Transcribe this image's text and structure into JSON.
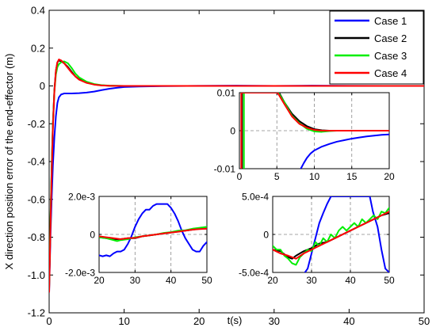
{
  "chart_data": [
    {
      "id": "main",
      "type": "line",
      "ylabel": "X direction position error of the end-effector (m)",
      "xlabel": "t(s)",
      "xlim": [
        0,
        50
      ],
      "ylim": [
        -1.2,
        0.4
      ],
      "xticks": [
        0,
        10,
        20,
        30,
        40,
        50
      ],
      "yticks": [
        -1.2,
        -1.0,
        -0.8,
        -0.6,
        -0.4,
        -0.2,
        0,
        0.2,
        0.4
      ],
      "ytick_labels": [
        "-1.2",
        "-1.0",
        "-0.8",
        "-0.6",
        "-0.4",
        "-0.2",
        "0",
        "0.2",
        "0.4"
      ],
      "legend_position": "top-right",
      "series": [
        {
          "name": "Case 1",
          "color": "#0000ff",
          "x": [
            0,
            0.1,
            0.2,
            0.35,
            0.5,
            0.7,
            0.9,
            1.1,
            1.3,
            1.6,
            2,
            3,
            4,
            5,
            6,
            7,
            8,
            9,
            10,
            12,
            15,
            20,
            25,
            30,
            35,
            40,
            45,
            50
          ],
          "y": [
            -1.09,
            -0.92,
            -0.76,
            -0.58,
            -0.42,
            -0.27,
            -0.16,
            -0.09,
            -0.06,
            -0.045,
            -0.04,
            -0.04,
            -0.038,
            -0.035,
            -0.03,
            -0.022,
            -0.015,
            -0.01,
            -0.006,
            -0.003,
            -0.001,
            0.0005,
            0.0015,
            0,
            0.0015,
            0.0005,
            0.0002,
            0
          ]
        },
        {
          "name": "Case 2",
          "color": "#000000",
          "x": [
            0,
            0.1,
            0.2,
            0.35,
            0.5,
            0.7,
            0.9,
            1.1,
            1.3,
            1.6,
            2,
            2.5,
            3,
            3.5,
            4,
            5,
            6,
            7,
            8,
            9,
            10,
            12,
            15,
            20,
            30,
            40,
            50
          ],
          "y": [
            -1.07,
            -0.88,
            -0.68,
            -0.42,
            -0.2,
            -0.02,
            0.08,
            0.125,
            0.135,
            0.13,
            0.12,
            0.1,
            0.075,
            0.05,
            0.035,
            0.018,
            0.008,
            0.003,
            0.001,
            0.0003,
            0,
            0,
            0,
            0,
            0,
            0,
            0
          ]
        },
        {
          "name": "Case 3",
          "color": "#00ee00",
          "x": [
            0,
            0.1,
            0.2,
            0.35,
            0.5,
            0.7,
            0.9,
            1.1,
            1.3,
            1.6,
            2,
            2.5,
            3,
            3.5,
            4,
            5,
            6,
            7,
            8,
            9,
            10,
            12,
            15,
            20,
            30,
            40,
            50
          ],
          "y": [
            -1.06,
            -0.86,
            -0.66,
            -0.41,
            -0.2,
            -0.03,
            0.06,
            0.1,
            0.115,
            0.125,
            0.13,
            0.12,
            0.095,
            0.065,
            0.045,
            0.022,
            0.01,
            0.004,
            0.0015,
            0.0005,
            0.0001,
            0,
            0,
            0,
            0,
            0,
            0
          ]
        },
        {
          "name": "Case 4",
          "color": "#ff0000",
          "x": [
            0,
            0.1,
            0.2,
            0.35,
            0.5,
            0.7,
            0.9,
            1.1,
            1.3,
            1.6,
            2,
            2.5,
            3,
            3.5,
            4,
            5,
            6,
            7,
            8,
            9,
            10,
            12,
            15,
            20,
            30,
            40,
            50
          ],
          "y": [
            -1.09,
            -0.9,
            -0.7,
            -0.44,
            -0.22,
            -0.03,
            0.08,
            0.125,
            0.14,
            0.135,
            0.12,
            0.095,
            0.07,
            0.05,
            0.033,
            0.016,
            0.007,
            0.0025,
            0.0008,
            0.0002,
            0,
            0,
            0,
            0,
            0,
            0,
            0
          ]
        }
      ]
    },
    {
      "id": "inset_a",
      "type": "line",
      "xlim": [
        0,
        20
      ],
      "ylim": [
        -0.01,
        0.01
      ],
      "xticks": [
        0,
        5,
        10,
        15,
        20
      ],
      "yticks": [
        -0.01,
        0,
        0.01
      ],
      "ytick_labels": [
        "-0.01",
        "0",
        "0.01"
      ],
      "series": [
        {
          "name": "Case 1",
          "color": "#0000ff",
          "x": [
            8.2,
            8.6,
            9,
            9.5,
            10,
            11,
            12,
            13,
            14,
            15,
            16,
            17,
            18,
            19,
            20
          ],
          "y": [
            -0.01,
            -0.0085,
            -0.0072,
            -0.006,
            -0.0052,
            -0.0042,
            -0.0035,
            -0.0029,
            -0.0025,
            -0.0021,
            -0.0018,
            -0.0015,
            -0.0013,
            -0.0011,
            -0.001
          ]
        },
        {
          "name": "Case 2",
          "color": "#000000",
          "x": [
            0.35,
            0.35,
            5.3,
            6,
            7,
            8,
            9,
            10,
            11,
            12,
            13,
            14,
            16,
            20
          ],
          "y": [
            -0.01,
            0.01,
            0.01,
            0.0075,
            0.0045,
            0.0025,
            0.0012,
            0.0004,
            0.0001,
            0,
            0,
            0,
            0,
            0
          ]
        },
        {
          "name": "Case 3",
          "color": "#00ee00",
          "x": [
            0.6,
            0.6,
            5.2,
            6,
            7,
            8,
            9,
            10,
            11,
            12,
            13,
            14,
            16,
            20
          ],
          "y": [
            -0.01,
            0.01,
            0.01,
            0.0075,
            0.004,
            0.002,
            0.0005,
            -0.0002,
            -0.0003,
            -0.0001,
            0,
            0,
            0,
            0
          ]
        },
        {
          "name": "Case 4",
          "color": "#ff0000",
          "x": [
            0.25,
            0.25,
            5.1,
            6,
            7,
            8,
            9,
            10,
            11,
            12,
            13,
            14,
            16,
            20
          ],
          "y": [
            -0.01,
            0.01,
            0.01,
            0.007,
            0.0038,
            0.0018,
            0.0008,
            0.0002,
            0,
            0,
            0,
            0,
            0,
            0
          ]
        }
      ]
    },
    {
      "id": "inset_b",
      "type": "line",
      "xlim": [
        20,
        50
      ],
      "ylim": [
        -0.002,
        0.002
      ],
      "xticks": [
        20,
        30,
        40,
        50
      ],
      "yticks": [
        -0.002,
        0,
        0.002
      ],
      "ytick_labels": [
        "-2.0e-3",
        "0",
        "2.0e-3"
      ],
      "series": [
        {
          "name": "Case 1",
          "color": "#0000ff",
          "x": [
            20,
            21,
            22,
            23,
            24,
            25,
            26,
            27,
            28,
            29,
            30,
            31,
            32,
            33,
            34,
            35,
            36,
            37,
            38,
            39,
            40,
            41,
            42,
            43,
            44,
            45,
            46,
            47,
            48,
            49,
            50
          ],
          "y": [
            -0.0011,
            -0.00115,
            -0.0011,
            -0.00115,
            -0.001,
            -0.0009,
            -0.0009,
            -0.0008,
            -0.0005,
            -0.0001,
            0.0004,
            0.0008,
            0.0011,
            0.0013,
            0.0013,
            0.0015,
            0.0016,
            0.0016,
            0.0016,
            0.0016,
            0.0014,
            0.0011,
            0.0007,
            0.0002,
            -0.0002,
            -0.0005,
            -0.0008,
            -0.0009,
            -0.0009,
            -0.0006,
            -0.0004
          ]
        },
        {
          "name": "Case 2",
          "color": "#000000",
          "x": [
            20,
            22,
            24,
            26,
            28,
            30,
            32,
            34,
            36,
            38,
            40,
            42,
            44,
            46,
            48,
            50
          ],
          "y": [
            -0.00015,
            -0.0002,
            -0.00025,
            -0.00025,
            -0.0002,
            -0.0002,
            -0.0001,
            -5e-05,
            0,
            5e-05,
            0.0001,
            0.00015,
            0.0002,
            0.00025,
            0.0003,
            0.0003
          ]
        },
        {
          "name": "Case 3",
          "color": "#00ee00",
          "x": [
            20,
            22,
            24,
            25,
            26,
            28,
            30,
            32,
            34,
            36,
            38,
            40,
            42,
            44,
            46,
            48,
            50
          ],
          "y": [
            -0.00015,
            -0.0002,
            -0.0003,
            -0.00035,
            -0.0003,
            -0.00025,
            -0.00015,
            -0.0001,
            -5e-05,
            0.0,
            8e-05,
            0.00012,
            0.0002,
            0.00022,
            0.0003,
            0.00035,
            0.0004
          ]
        },
        {
          "name": "Case 4",
          "color": "#ff0000",
          "x": [
            20,
            22,
            24,
            26,
            28,
            30,
            32,
            34,
            36,
            38,
            40,
            42,
            44,
            46,
            48,
            50
          ],
          "y": [
            -0.0001,
            -0.00015,
            -0.0002,
            -0.00025,
            -0.0002,
            -0.00018,
            -0.0001,
            -5e-05,
            0,
            5e-05,
            0.0001,
            0.00014,
            0.0002,
            0.00025,
            0.00028,
            0.0003
          ]
        }
      ]
    },
    {
      "id": "inset_c",
      "type": "line",
      "xlim": [
        20,
        50
      ],
      "ylim": [
        -0.0005,
        0.0005
      ],
      "xticks": [
        20,
        30,
        40,
        50
      ],
      "yticks": [
        -0.0005,
        0,
        0.0005
      ],
      "ytick_labels": [
        "-5.0e-4",
        "0",
        "5.0e-4"
      ],
      "series": [
        {
          "name": "Case 1",
          "color": "#0000ff",
          "x": [
            28.3,
            29,
            30,
            31,
            32,
            33,
            34,
            35,
            36.6,
            45,
            45.8,
            47,
            48,
            49,
            50
          ],
          "y": [
            -0.0005,
            -0.00045,
            -0.00025,
            -5e-05,
            0.00015,
            0.00028,
            0.0004,
            0.0005,
            0.0005,
            0.0005,
            0.0003,
            0.0001,
            -0.0002,
            -0.00045,
            -0.0005
          ]
        },
        {
          "name": "Case 2",
          "color": "#000000",
          "x": [
            20,
            22,
            24,
            25,
            26,
            28,
            30,
            32,
            34,
            36,
            38,
            40,
            42,
            44,
            46,
            48,
            50
          ],
          "y": [
            -0.0002,
            -0.00022,
            -0.0003,
            -0.00032,
            -0.00028,
            -0.00022,
            -0.00018,
            -0.00012,
            -0.0001,
            -5e-05,
            0,
            5e-05,
            0.0001,
            0.00015,
            0.0002,
            0.00025,
            0.00028
          ]
        },
        {
          "name": "Case 3",
          "color": "#00ee00",
          "x": [
            20,
            21,
            22,
            23,
            24,
            25,
            26,
            27,
            28,
            29,
            30,
            31,
            32,
            33,
            34,
            35,
            36,
            37,
            38,
            39,
            40,
            41,
            42,
            43,
            44,
            45,
            46,
            47,
            48,
            49,
            50
          ],
          "y": [
            -0.00015,
            -0.0002,
            -0.0002,
            -0.00028,
            -0.00032,
            -0.00038,
            -0.0004,
            -0.0003,
            -0.00025,
            -0.0002,
            -0.00022,
            -0.0001,
            -0.00015,
            -5e-05,
            -0.0001,
            0,
            -5e-05,
            5e-05,
            0.0001,
            5e-05,
            0.0001,
            0.00015,
            0.0001,
            0.0002,
            0.00015,
            0.0002,
            0.00025,
            0.0002,
            0.0003,
            0.00028,
            0.00035
          ]
        },
        {
          "name": "Case 4",
          "color": "#ff0000",
          "x": [
            20,
            22,
            24,
            26,
            28,
            30,
            32,
            34,
            36,
            38,
            40,
            42,
            44,
            46,
            48,
            50
          ],
          "y": [
            -0.0002,
            -0.00025,
            -0.00028,
            -0.00032,
            -0.00025,
            -0.0002,
            -0.00015,
            -0.0001,
            -5e-05,
            0,
            5e-05,
            0.0001,
            0.00015,
            0.0002,
            0.00025,
            0.0003
          ]
        }
      ]
    }
  ]
}
